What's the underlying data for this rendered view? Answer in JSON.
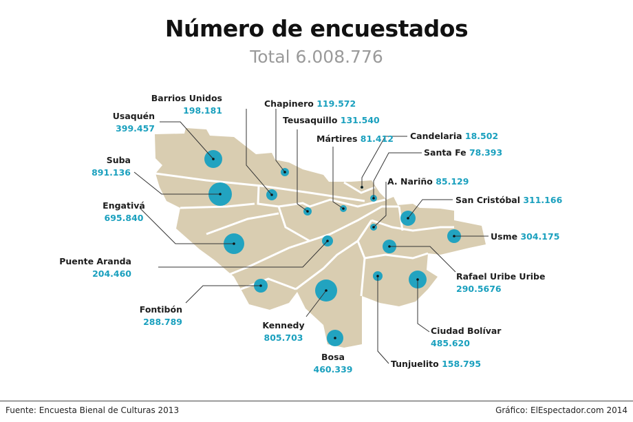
{
  "title": "Número de encuestados",
  "subtitle": "Total 6.008.776",
  "colors": {
    "map": "#d9cdb1",
    "bubble": "#22a3c0",
    "value_text": "#1aa0be",
    "border": "#ffffff"
  },
  "districts": [
    {
      "name": "Usaquén",
      "value": "399.457"
    },
    {
      "name": "Barrios Unidos",
      "value": "198.181"
    },
    {
      "name": "Chapinero",
      "value": "119.572"
    },
    {
      "name": "Teusaquillo",
      "value": "131.540"
    },
    {
      "name": "Mártires",
      "value": "81.412"
    },
    {
      "name": "Candelaria",
      "value": "18.502"
    },
    {
      "name": "Santa Fe",
      "value": "78.393"
    },
    {
      "name": "A. Nariño",
      "value": "85.129"
    },
    {
      "name": "San Cristóbal",
      "value": "311.166"
    },
    {
      "name": "Usme",
      "value": "304.175"
    },
    {
      "name": "Rafael Uribe Uribe",
      "value": "290.5676"
    },
    {
      "name": "Ciudad Bolívar",
      "value": "485.620"
    },
    {
      "name": "Tunjuelito",
      "value": "158.795"
    },
    {
      "name": "Bosa",
      "value": "460.339"
    },
    {
      "name": "Kennedy",
      "value": "805.703"
    },
    {
      "name": "Fontibón",
      "value": "288.789"
    },
    {
      "name": "Puente Aranda",
      "value": "204.460"
    },
    {
      "name": "Engativá",
      "value": "695.840"
    },
    {
      "name": "Suba",
      "value": "891.136"
    }
  ],
  "footer": {
    "source": "Fuente: Encuesta Bienal de Culturas 2013",
    "credit": "Gráfico: ElEspectador.com 2014"
  }
}
